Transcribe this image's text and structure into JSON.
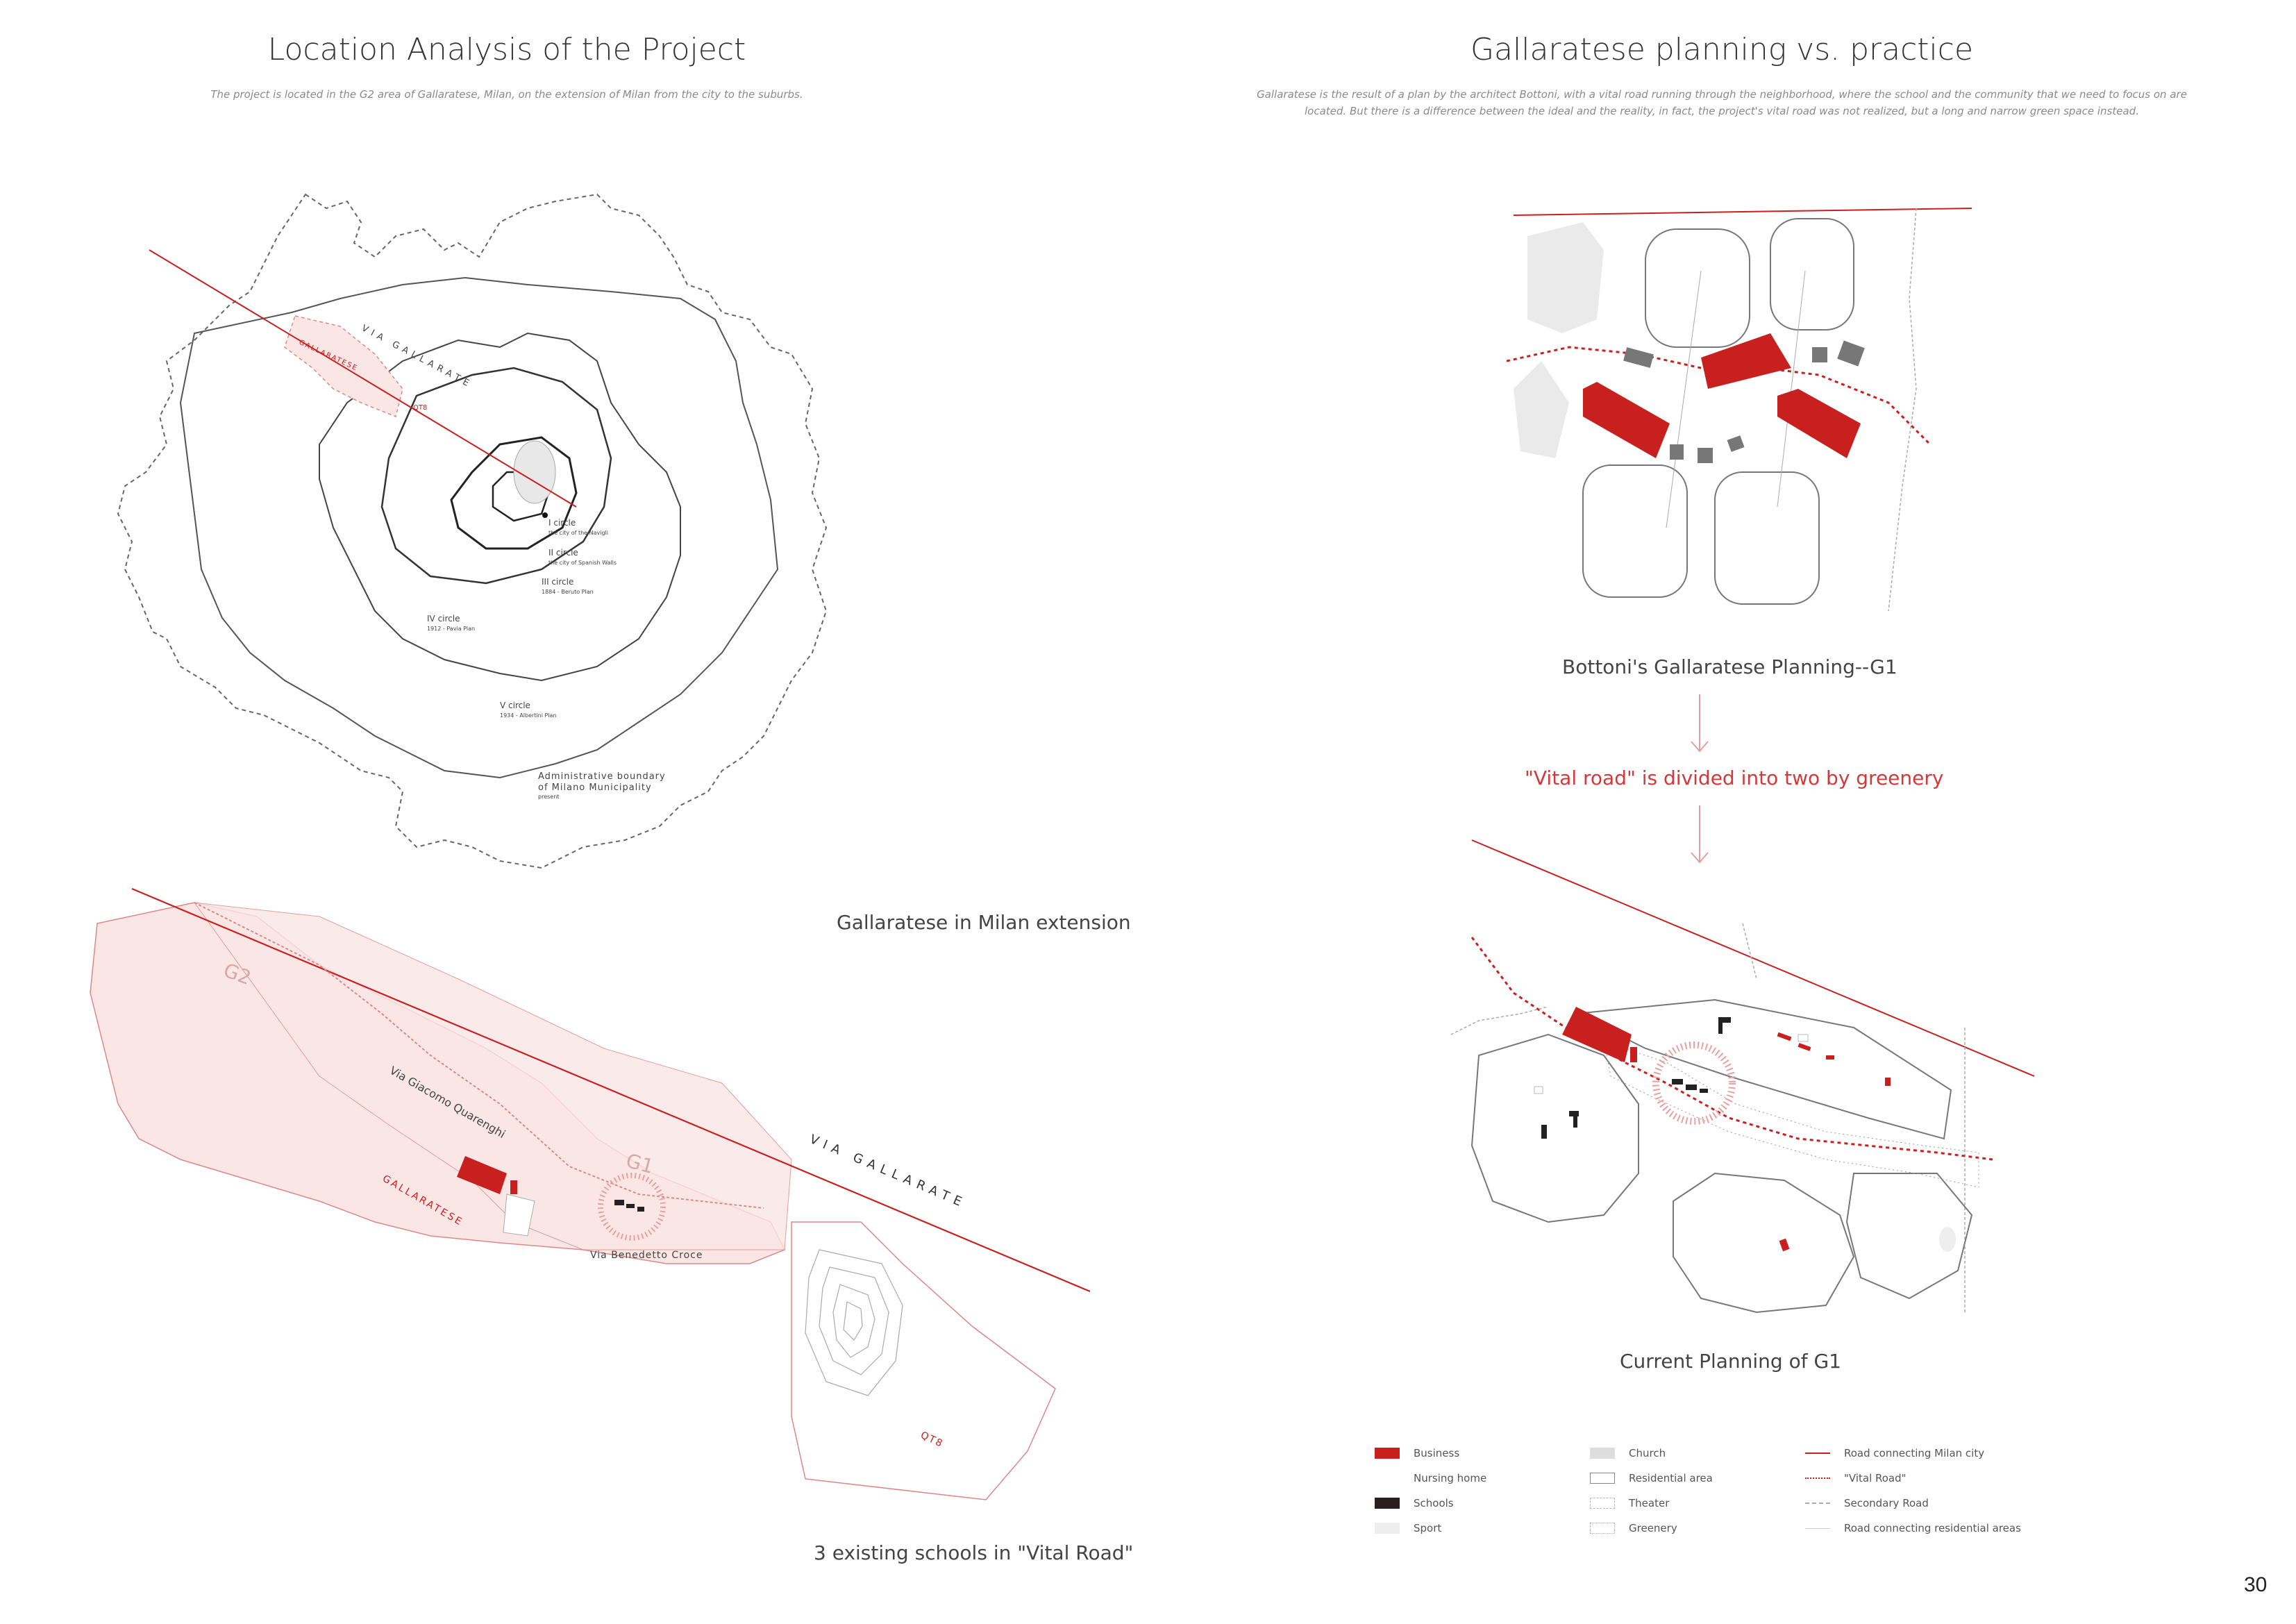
{
  "left": {
    "title": "Location Analysis of the Project",
    "subtitle": "The project is located in the G2 area of Gallaratese, Milan, on the extension of Milan from the city to the suburbs.",
    "caption_top": "Gallaratese in Milan extension",
    "caption_bottom": "3 existing schools in \"Vital Road\"",
    "milan_map": {
      "via_gallarate": "VIA GALLARATE",
      "gallaratese": "GALLARATESE",
      "qt8": "QT8",
      "circles": [
        {
          "name": "I circle",
          "note": "the city of the Navigli"
        },
        {
          "name": "II circle",
          "note": "the city of Spanish Walls"
        },
        {
          "name": "III circle",
          "note": "1884 - Beruto Plan"
        },
        {
          "name": "IV circle",
          "note": "1912 - Pavia Plan"
        },
        {
          "name": "V circle",
          "note": "1934 - Albertini Plan"
        }
      ],
      "admin_boundary": [
        "Administrative boundary",
        "of Milano Municipality",
        "present"
      ]
    },
    "district_map": {
      "g2": "G2",
      "g1": "G1",
      "via_giacomo": "Via Giacomo Quarenghi",
      "gallaratese": "GALLARATESE",
      "via_benedetto": "Via Benedetto Croce",
      "via_gallarate": "VIA GALLARATE",
      "qt8": "QT8"
    }
  },
  "right": {
    "title": "Gallaratese planning vs. practice",
    "subtitle_line1": "Gallaratese is the result of a plan by the architect Bottoni, with a vital road running through the neighborhood, where the school and the community that we need to focus on are",
    "subtitle_line2": "located. But there is a difference between the ideal and the reality, in fact, the project's vital road was not realized, but a long and narrow green space instead.",
    "caption_plan": "Bottoni's Gallaratese Planning--G1",
    "caption_red": "\"Vital road\" is divided into two by greenery",
    "caption_current": "Current Planning of G1"
  },
  "legend": {
    "col1": [
      "Business",
      "Nursing home",
      "Schools",
      "Sport"
    ],
    "col2": [
      "Church",
      "Residential area",
      "Theater",
      "Greenery"
    ],
    "col3": [
      "Road connecting Milan city",
      "\"Vital Road\"",
      "Secondary Road",
      "Road connecting residential areas"
    ]
  },
  "colors": {
    "accent_red": "#c8201f",
    "light_red": "#fbe6e6",
    "grey": "#8c8c8c",
    "text": "#333333"
  },
  "page_number": "30"
}
